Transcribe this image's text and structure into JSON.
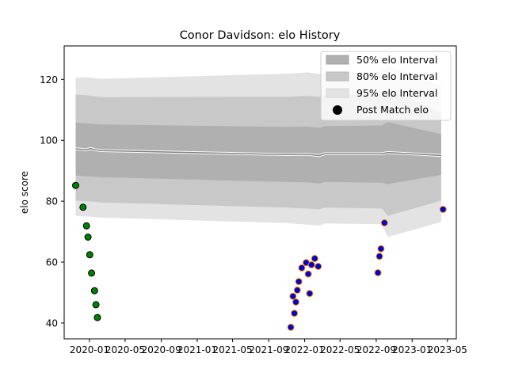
{
  "chart_data": {
    "type": "scatter",
    "title": "Conor Davidson: elo History",
    "xlabel": "",
    "ylabel": "elo score",
    "xlim": [
      "2019-10-07",
      "2023-05-31"
    ],
    "ylim": [
      34.8,
      131.0
    ],
    "x_ticks": [
      "2020-01",
      "2020-05",
      "2020-09",
      "2021-01",
      "2021-05",
      "2021-09",
      "2022-01",
      "2022-05",
      "2022-09",
      "2023-01",
      "2023-05"
    ],
    "y_ticks": [
      40,
      60,
      80,
      100,
      120
    ],
    "legend": {
      "position": "top-right",
      "entries": [
        "50% elo Interval",
        "80% elo Interval",
        "95% elo Interval",
        "Post Match elo"
      ]
    },
    "colors": {
      "band_50": "#b0b0b0",
      "band_80": "#c8c8c8",
      "band_95": "#e3e3e3",
      "mean_line": "#808080",
      "marker_edge_green": "#000000",
      "marker_fill_green": "#008000",
      "marker_fill_blue": "#0000cc",
      "marker_edge_orange": "#ff8c00"
    },
    "intervals": {
      "x": [
        "2019-11-15",
        "2019-12-20",
        "2020-01-05",
        "2020-01-20",
        "2020-02-10",
        "2021-11-01",
        "2022-01-10",
        "2022-02-20",
        "2022-03-10",
        "2022-09-20",
        "2022-10-10",
        "2023-04-10"
      ],
      "mean": [
        97.2,
        96.9,
        97.3,
        96.9,
        96.6,
        95.3,
        95.4,
        95.0,
        95.6,
        95.6,
        96.0,
        95.0
      ],
      "band_50": {
        "lower": [
          88.4,
          88.2,
          88.2,
          88.0,
          87.9,
          86.3,
          86.2,
          85.8,
          86.3,
          86.1,
          85.6,
          88.7
        ],
        "upper": [
          105.8,
          105.6,
          105.5,
          105.3,
          105.2,
          104.4,
          104.5,
          104.1,
          104.7,
          104.9,
          106.0,
          102.0
        ]
      },
      "band_80": {
        "lower": [
          80.2,
          80.0,
          79.9,
          79.8,
          79.6,
          77.9,
          77.6,
          77.3,
          77.9,
          77.6,
          75.2,
          80.2
        ],
        "upper": [
          115.0,
          114.8,
          114.6,
          114.4,
          114.2,
          114.3,
          114.6,
          114.3,
          114.9,
          115.0,
          116.9,
          109.1
        ]
      },
      "band_95": {
        "lower": [
          75.2,
          75.0,
          74.9,
          74.8,
          74.6,
          72.8,
          72.3,
          72.0,
          72.7,
          72.4,
          68.2,
          73.2
        ],
        "upper": [
          120.5,
          120.8,
          120.6,
          120.4,
          120.2,
          121.9,
          122.3,
          121.8,
          122.2,
          122.5,
          124.5,
          117.8
        ]
      }
    },
    "series": [
      {
        "name": "Post Match elo",
        "style": "green",
        "x": [
          "2019-11-15",
          "2019-12-10",
          "2019-12-22",
          "2019-12-27",
          "2020-01-02",
          "2020-01-08",
          "2020-01-18",
          "2020-01-23",
          "2020-01-28"
        ],
        "y": [
          85.2,
          78.0,
          71.9,
          68.2,
          62.4,
          56.4,
          50.6,
          46.0,
          41.8
        ]
      },
      {
        "name": "Post Match elo",
        "style": "blue",
        "x": [
          "2021-11-15",
          "2021-11-22",
          "2021-11-27",
          "2021-12-02",
          "2021-12-07",
          "2021-12-12",
          "2021-12-22",
          "2022-01-06",
          "2022-01-13",
          "2022-01-18",
          "2022-01-24",
          "2022-02-04",
          "2022-02-16",
          "2022-09-07",
          "2022-09-12",
          "2022-09-17",
          "2022-09-29",
          "2023-04-16"
        ],
        "y": [
          38.6,
          48.8,
          43.2,
          46.9,
          50.8,
          53.6,
          58.1,
          59.8,
          56.1,
          49.7,
          59.1,
          61.2,
          58.6,
          56.5,
          61.9,
          64.4,
          72.9,
          77.3
        ]
      }
    ]
  }
}
